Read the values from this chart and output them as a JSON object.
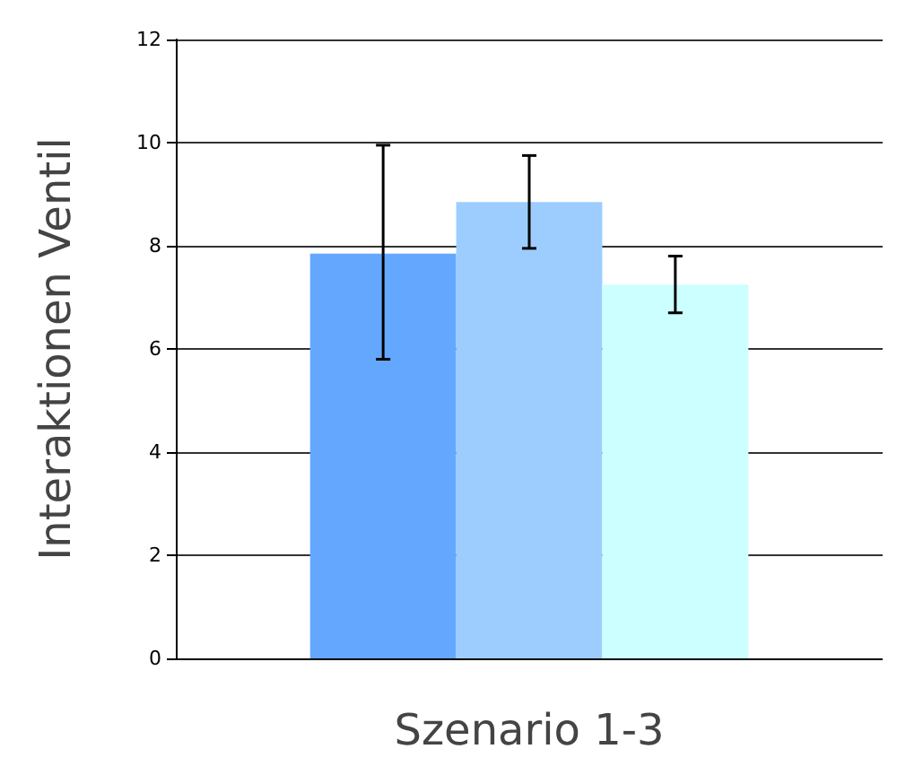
{
  "chart_data": {
    "type": "bar",
    "xlabel": "Szenario 1-3",
    "ylabel": "Interaktionen Ventil",
    "categories": [
      null
    ],
    "series": [
      {
        "color": "#63a8fe",
        "values": [
          7.85
        ],
        "errors": [
          [
            5.8,
            9.95
          ]
        ]
      },
      {
        "color": "#9dcdfe",
        "values": [
          8.85
        ],
        "errors": [
          [
            7.95,
            9.75
          ]
        ]
      },
      {
        "color": "#ccffff",
        "values": [
          7.25
        ],
        "errors": [
          [
            6.7,
            7.8
          ]
        ]
      }
    ],
    "ylim": [
      0,
      12
    ],
    "yticks": [
      0,
      2,
      4,
      6,
      8,
      10,
      12
    ],
    "grid": "y"
  }
}
